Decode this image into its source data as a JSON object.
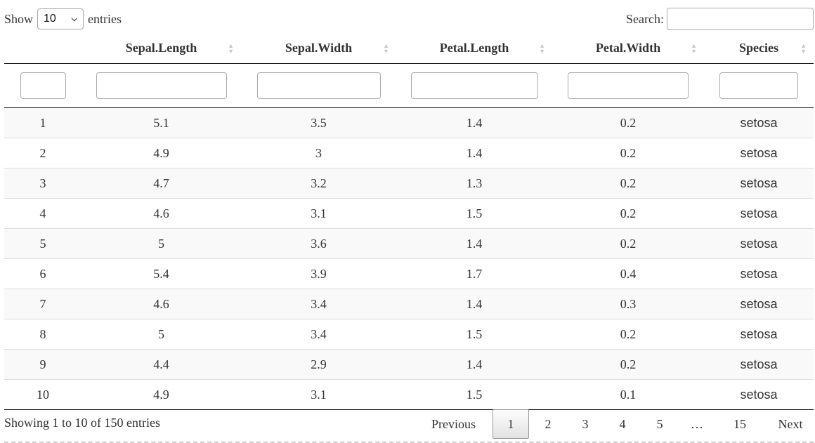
{
  "length_menu": {
    "show_label": "Show",
    "entries_label": "entries",
    "selected": "10",
    "chevron_icon": "chevron-down-icon"
  },
  "search": {
    "label": "Search:",
    "value": ""
  },
  "columns": [
    "",
    "Sepal.Length",
    "Sepal.Width",
    "Petal.Length",
    "Petal.Width",
    "Species"
  ],
  "sort_icons": "sort-both-icon",
  "rows": [
    [
      "1",
      "5.1",
      "3.5",
      "1.4",
      "0.2",
      "setosa"
    ],
    [
      "2",
      "4.9",
      "3",
      "1.4",
      "0.2",
      "setosa"
    ],
    [
      "3",
      "4.7",
      "3.2",
      "1.3",
      "0.2",
      "setosa"
    ],
    [
      "4",
      "4.6",
      "3.1",
      "1.5",
      "0.2",
      "setosa"
    ],
    [
      "5",
      "5",
      "3.6",
      "1.4",
      "0.2",
      "setosa"
    ],
    [
      "6",
      "5.4",
      "3.9",
      "1.7",
      "0.4",
      "setosa"
    ],
    [
      "7",
      "4.6",
      "3.4",
      "1.4",
      "0.3",
      "setosa"
    ],
    [
      "8",
      "5",
      "3.4",
      "1.5",
      "0.2",
      "setosa"
    ],
    [
      "9",
      "4.4",
      "2.9",
      "1.4",
      "0.2",
      "setosa"
    ],
    [
      "10",
      "4.9",
      "3.1",
      "1.5",
      "0.1",
      "setosa"
    ]
  ],
  "info": "Showing 1 to 10 of 150 entries",
  "pagination": {
    "previous": "Previous",
    "pages": [
      "1",
      "2",
      "3",
      "4",
      "5",
      "…",
      "15"
    ],
    "current": "1",
    "next": "Next"
  },
  "colors": {
    "row_stripe": "#f9f9f9",
    "border": "#111111",
    "current_page_bg": "#e2e2e2"
  }
}
